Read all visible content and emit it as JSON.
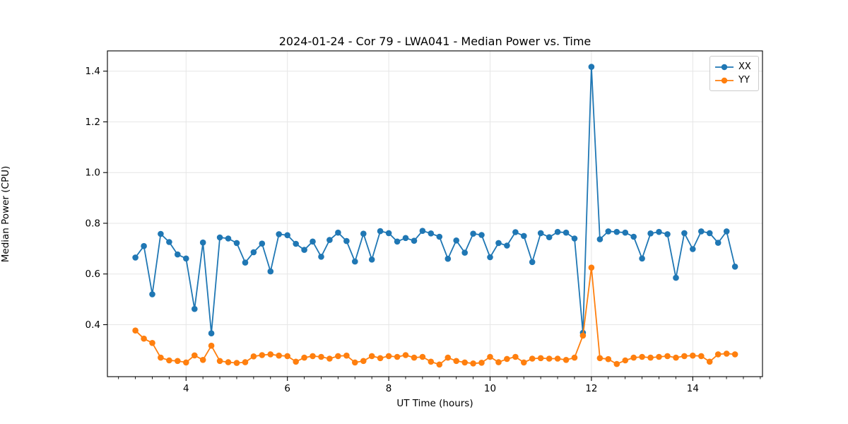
{
  "chart_data": {
    "type": "line",
    "title": "2024-01-24 - Cor 79 - LWA041 - Median Power vs. Time",
    "xlabel": "UT Time (hours)",
    "ylabel": "Median Power (CPU)",
    "xlim": [
      2.448,
      15.376
    ],
    "ylim": [
      0.195,
      1.48
    ],
    "grid": true,
    "legend_position": "upper right",
    "x_major_ticks": [
      4,
      6,
      8,
      10,
      12,
      14
    ],
    "x_major_tick_labels": [
      "4",
      "6",
      "8",
      "10",
      "12",
      "14"
    ],
    "x_minor_tick_step": 0.3333,
    "y_major_ticks": [
      0.4,
      0.6,
      0.8,
      1.0,
      1.2,
      1.4
    ],
    "y_major_tick_labels": [
      "0.4",
      "0.6",
      "0.8",
      "1.0",
      "1.2",
      "1.4"
    ],
    "x": [
      3.0,
      3.167,
      3.333,
      3.5,
      3.667,
      3.833,
      4.0,
      4.167,
      4.333,
      4.5,
      4.667,
      4.833,
      5.0,
      5.167,
      5.333,
      5.5,
      5.667,
      5.833,
      6.0,
      6.167,
      6.333,
      6.5,
      6.667,
      6.833,
      7.0,
      7.167,
      7.333,
      7.5,
      7.667,
      7.833,
      8.0,
      8.167,
      8.333,
      8.5,
      8.667,
      8.833,
      9.0,
      9.167,
      9.333,
      9.5,
      9.667,
      9.833,
      10.0,
      10.167,
      10.333,
      10.5,
      10.667,
      10.833,
      11.0,
      11.167,
      11.333,
      11.5,
      11.667,
      11.833,
      12.0,
      12.167,
      12.333,
      12.5,
      12.667,
      12.833,
      13.0,
      13.167,
      13.333,
      13.5,
      13.667,
      13.833,
      14.0,
      14.167,
      14.333,
      14.5,
      14.667,
      14.833
    ],
    "series": [
      {
        "name": "XX",
        "color": "#1f77b4",
        "values": [
          0.665,
          0.71,
          0.52,
          0.758,
          0.726,
          0.677,
          0.661,
          0.462,
          0.724,
          0.366,
          0.744,
          0.74,
          0.722,
          0.645,
          0.686,
          0.72,
          0.61,
          0.757,
          0.753,
          0.719,
          0.695,
          0.728,
          0.668,
          0.734,
          0.763,
          0.73,
          0.649,
          0.759,
          0.657,
          0.769,
          0.761,
          0.728,
          0.742,
          0.731,
          0.77,
          0.76,
          0.747,
          0.66,
          0.732,
          0.684,
          0.759,
          0.754,
          0.666,
          0.722,
          0.712,
          0.765,
          0.75,
          0.647,
          0.761,
          0.745,
          0.766,
          0.763,
          0.74,
          0.368,
          1.417,
          0.737,
          0.768,
          0.766,
          0.763,
          0.747,
          0.661,
          0.76,
          0.766,
          0.757,
          0.585,
          0.761,
          0.698,
          0.768,
          0.761,
          0.723,
          0.768,
          0.629
        ]
      },
      {
        "name": "YY",
        "color": "#ff7f0e",
        "values": [
          0.377,
          0.345,
          0.328,
          0.27,
          0.259,
          0.257,
          0.251,
          0.279,
          0.261,
          0.317,
          0.257,
          0.252,
          0.249,
          0.252,
          0.275,
          0.28,
          0.283,
          0.278,
          0.276,
          0.254,
          0.27,
          0.276,
          0.273,
          0.266,
          0.276,
          0.278,
          0.251,
          0.257,
          0.276,
          0.268,
          0.276,
          0.273,
          0.28,
          0.27,
          0.273,
          0.254,
          0.243,
          0.27,
          0.257,
          0.251,
          0.247,
          0.25,
          0.273,
          0.252,
          0.265,
          0.273,
          0.251,
          0.266,
          0.268,
          0.266,
          0.266,
          0.261,
          0.27,
          0.357,
          0.625,
          0.268,
          0.264,
          0.245,
          0.259,
          0.27,
          0.273,
          0.27,
          0.273,
          0.276,
          0.27,
          0.276,
          0.278,
          0.276,
          0.254,
          0.283,
          0.286,
          0.283
        ]
      }
    ],
    "colors": {
      "grid": "#e6e6e6",
      "axis": "#000000",
      "background": "#ffffff"
    }
  }
}
